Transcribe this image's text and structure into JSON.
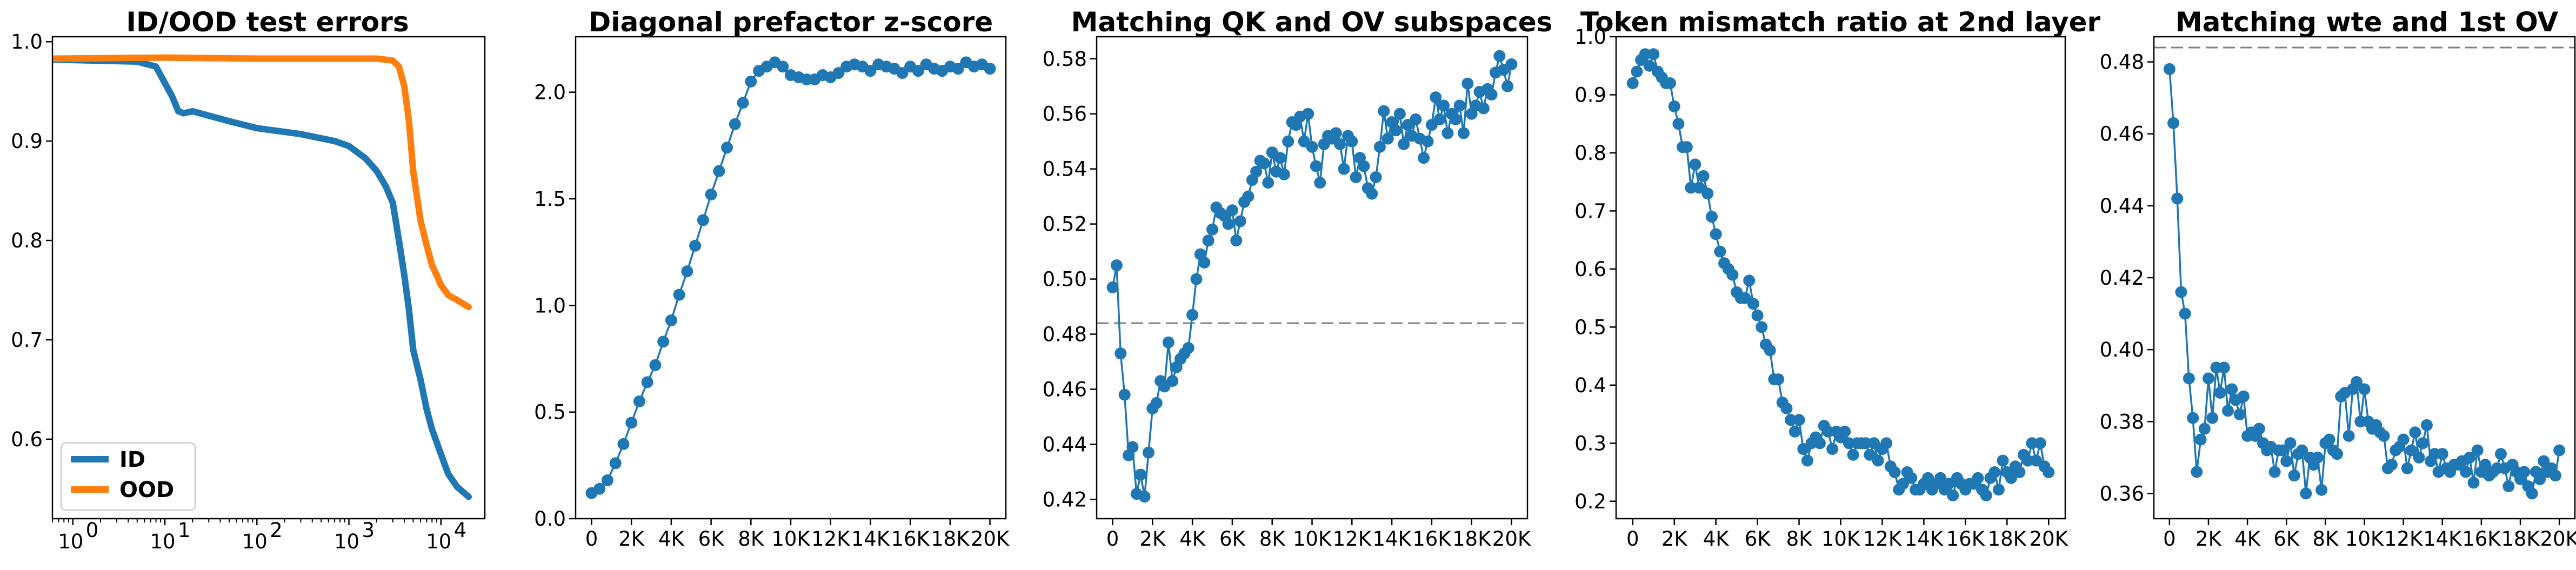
{
  "colors": {
    "blue": "#1f77b4",
    "orange": "#ff7f0e",
    "ref_line": "#808080"
  },
  "chart_data": [
    {
      "type": "line",
      "title": "ID/OOD test errors",
      "xscale": "log",
      "xlim": [
        0.6,
        30000
      ],
      "ylim": [
        0.52,
        1.005
      ],
      "xticks": [
        1,
        10,
        100,
        1000,
        10000
      ],
      "xtick_labels": [
        "10",
        "10",
        "10",
        "10",
        "10"
      ],
      "xtick_exponents": [
        "0",
        "1",
        "2",
        "3",
        "4"
      ],
      "yticks": [
        0.6,
        0.7,
        0.8,
        0.9,
        1.0
      ],
      "ytick_labels": [
        "0.6",
        "0.7",
        "0.8",
        "0.9",
        "1.0"
      ],
      "legend_position": "lower-left",
      "series": [
        {
          "name": "ID",
          "color": "#1f77b4",
          "x": [
            0.6,
            5,
            8,
            12,
            14,
            16,
            20,
            50,
            100,
            300,
            700,
            1000,
            1500,
            2000,
            2500,
            3000,
            3500,
            4000,
            4500,
            5000,
            6000,
            7000,
            8000,
            10000,
            12000,
            15000,
            20000
          ],
          "y": [
            0.982,
            0.98,
            0.975,
            0.945,
            0.93,
            0.928,
            0.93,
            0.92,
            0.913,
            0.907,
            0.9,
            0.895,
            0.883,
            0.87,
            0.855,
            0.838,
            0.8,
            0.765,
            0.73,
            0.69,
            0.66,
            0.63,
            0.61,
            0.585,
            0.565,
            0.552,
            0.542
          ]
        },
        {
          "name": "OOD",
          "color": "#ff7f0e",
          "x": [
            0.6,
            10,
            100,
            1000,
            2000,
            3000,
            3500,
            4000,
            4500,
            5000,
            6000,
            7000,
            8000,
            9000,
            10000,
            12000,
            15000,
            20000
          ],
          "y": [
            0.983,
            0.984,
            0.983,
            0.983,
            0.983,
            0.981,
            0.975,
            0.955,
            0.92,
            0.87,
            0.82,
            0.795,
            0.775,
            0.765,
            0.755,
            0.745,
            0.74,
            0.733
          ]
        }
      ]
    },
    {
      "type": "line",
      "title": "Diagonal prefactor z-score",
      "xlim": [
        -800,
        20800
      ],
      "ylim": [
        0.0,
        2.26
      ],
      "xticks": [
        0,
        2000,
        4000,
        6000,
        8000,
        10000,
        12000,
        14000,
        16000,
        18000,
        20000
      ],
      "xtick_labels": [
        "0",
        "2K",
        "4K",
        "6K",
        "8K",
        "10K",
        "12K",
        "14K",
        "16K",
        "18K",
        "20K"
      ],
      "yticks": [
        0.0,
        0.5,
        1.0,
        1.5,
        2.0
      ],
      "ytick_labels": [
        "0.0",
        "0.5",
        "1.0",
        "1.5",
        "2.0"
      ],
      "series": [
        {
          "color": "#1f77b4",
          "marker": "o",
          "x": [
            0,
            400,
            800,
            1200,
            1600,
            2000,
            2400,
            2800,
            3200,
            3600,
            4000,
            4400,
            4800,
            5200,
            5600,
            6000,
            6400,
            6800,
            7200,
            7600,
            8000,
            8400,
            8800,
            9200,
            9600,
            10000,
            10400,
            10800,
            11200,
            11600,
            12000,
            12400,
            12800,
            13200,
            13600,
            14000,
            14400,
            14800,
            15200,
            15600,
            16000,
            16400,
            16800,
            17200,
            17600,
            18000,
            18400,
            18800,
            19200,
            19600,
            20000
          ],
          "y": [
            0.12,
            0.14,
            0.18,
            0.26,
            0.35,
            0.45,
            0.55,
            0.64,
            0.72,
            0.83,
            0.93,
            1.05,
            1.16,
            1.28,
            1.4,
            1.52,
            1.63,
            1.74,
            1.85,
            1.95,
            2.05,
            2.1,
            2.12,
            2.14,
            2.12,
            2.08,
            2.07,
            2.06,
            2.06,
            2.08,
            2.07,
            2.09,
            2.12,
            2.13,
            2.12,
            2.1,
            2.13,
            2.12,
            2.11,
            2.09,
            2.12,
            2.1,
            2.13,
            2.11,
            2.1,
            2.12,
            2.11,
            2.14,
            2.12,
            2.13,
            2.11
          ]
        }
      ]
    },
    {
      "type": "line",
      "title": "Matching QK and OV subspaces",
      "xlim": [
        -800,
        20800
      ],
      "ylim": [
        0.413,
        0.588
      ],
      "hline": 0.484,
      "xticks": [
        0,
        2000,
        4000,
        6000,
        8000,
        10000,
        12000,
        14000,
        16000,
        18000,
        20000
      ],
      "xtick_labels": [
        "0",
        "2K",
        "4K",
        "6K",
        "8K",
        "10K",
        "12K",
        "14K",
        "16K",
        "18K",
        "20K"
      ],
      "yticks": [
        0.42,
        0.44,
        0.46,
        0.48,
        0.5,
        0.52,
        0.54,
        0.56,
        0.58
      ],
      "ytick_labels": [
        "0.42",
        "0.44",
        "0.46",
        "0.48",
        "0.50",
        "0.52",
        "0.54",
        "0.56",
        "0.58"
      ],
      "series": [
        {
          "color": "#1f77b4",
          "marker": "o",
          "x": [
            0,
            200,
            400,
            600,
            800,
            1000,
            1200,
            1400,
            1600,
            1800,
            2000,
            2200,
            2400,
            2600,
            2800,
            3000,
            3200,
            3400,
            3600,
            3800,
            4000,
            4200,
            4400,
            4600,
            4800,
            5000,
            5200,
            5400,
            5600,
            5800,
            6000,
            6200,
            6400,
            6600,
            6800,
            7000,
            7200,
            7400,
            7600,
            7800,
            8000,
            8200,
            8400,
            8600,
            8800,
            9000,
            9200,
            9400,
            9600,
            9800,
            10000,
            10200,
            10400,
            10600,
            10800,
            11000,
            11200,
            11400,
            11600,
            11800,
            12000,
            12200,
            12400,
            12600,
            12800,
            13000,
            13200,
            13400,
            13600,
            13800,
            14000,
            14200,
            14400,
            14600,
            14800,
            15000,
            15200,
            15400,
            15600,
            15800,
            16000,
            16200,
            16400,
            16600,
            16800,
            17000,
            17200,
            17400,
            17600,
            17800,
            18000,
            18200,
            18400,
            18600,
            18800,
            19000,
            19200,
            19400,
            19600,
            19800,
            20000
          ],
          "y": [
            0.497,
            0.505,
            0.473,
            0.458,
            0.436,
            0.439,
            0.422,
            0.429,
            0.421,
            0.437,
            0.453,
            0.455,
            0.463,
            0.461,
            0.477,
            0.463,
            0.468,
            0.471,
            0.473,
            0.475,
            0.487,
            0.5,
            0.509,
            0.506,
            0.514,
            0.518,
            0.526,
            0.524,
            0.523,
            0.52,
            0.525,
            0.514,
            0.521,
            0.528,
            0.53,
            0.536,
            0.539,
            0.543,
            0.542,
            0.535,
            0.546,
            0.539,
            0.544,
            0.538,
            0.55,
            0.557,
            0.556,
            0.559,
            0.55,
            0.56,
            0.548,
            0.541,
            0.535,
            0.549,
            0.552,
            0.551,
            0.553,
            0.549,
            0.54,
            0.552,
            0.55,
            0.537,
            0.544,
            0.541,
            0.533,
            0.531,
            0.537,
            0.548,
            0.561,
            0.551,
            0.557,
            0.554,
            0.56,
            0.549,
            0.556,
            0.552,
            0.558,
            0.551,
            0.544,
            0.55,
            0.556,
            0.566,
            0.558,
            0.563,
            0.553,
            0.56,
            0.558,
            0.563,
            0.553,
            0.571,
            0.56,
            0.563,
            0.568,
            0.562,
            0.569,
            0.567,
            0.575,
            0.581,
            0.576,
            0.57,
            0.578
          ]
        }
      ]
    },
    {
      "type": "line",
      "title": "Token mismatch ratio at 2nd layer",
      "xlim": [
        -800,
        20800
      ],
      "ylim": [
        0.17,
        1.0
      ],
      "xticks": [
        0,
        2000,
        4000,
        6000,
        8000,
        10000,
        12000,
        14000,
        16000,
        18000,
        20000
      ],
      "xtick_labels": [
        "0",
        "2K",
        "4K",
        "6K",
        "8K",
        "10K",
        "12K",
        "14K",
        "16K",
        "18K",
        "20K"
      ],
      "yticks": [
        0.2,
        0.3,
        0.4,
        0.5,
        0.6,
        0.7,
        0.8,
        0.9,
        1.0
      ],
      "ytick_labels": [
        "0.2",
        "0.3",
        "0.4",
        "0.5",
        "0.6",
        "0.7",
        "0.8",
        "0.9",
        "1.0"
      ],
      "series": [
        {
          "color": "#1f77b4",
          "marker": "o",
          "x": [
            0,
            200,
            400,
            600,
            800,
            1000,
            1200,
            1400,
            1600,
            1800,
            2000,
            2200,
            2400,
            2600,
            2800,
            3000,
            3200,
            3400,
            3600,
            3800,
            4000,
            4200,
            4400,
            4600,
            4800,
            5000,
            5200,
            5400,
            5600,
            5800,
            6000,
            6200,
            6400,
            6600,
            6800,
            7000,
            7200,
            7400,
            7600,
            7800,
            8000,
            8200,
            8400,
            8600,
            8800,
            9000,
            9200,
            9400,
            9600,
            9800,
            10000,
            10200,
            10400,
            10600,
            10800,
            11000,
            11200,
            11400,
            11600,
            11800,
            12000,
            12200,
            12400,
            12600,
            12800,
            13000,
            13200,
            13400,
            13600,
            13800,
            14000,
            14200,
            14400,
            14600,
            14800,
            15000,
            15200,
            15400,
            15600,
            15800,
            16000,
            16200,
            16400,
            16600,
            16800,
            17000,
            17200,
            17400,
            17600,
            17800,
            18000,
            18200,
            18400,
            18600,
            18800,
            19000,
            19200,
            19400,
            19600,
            19800,
            20000
          ],
          "y": [
            0.92,
            0.94,
            0.96,
            0.97,
            0.95,
            0.97,
            0.94,
            0.93,
            0.92,
            0.92,
            0.88,
            0.85,
            0.81,
            0.81,
            0.74,
            0.78,
            0.74,
            0.76,
            0.73,
            0.69,
            0.66,
            0.63,
            0.61,
            0.6,
            0.59,
            0.56,
            0.55,
            0.55,
            0.58,
            0.54,
            0.52,
            0.5,
            0.47,
            0.46,
            0.41,
            0.41,
            0.37,
            0.36,
            0.34,
            0.32,
            0.34,
            0.29,
            0.27,
            0.3,
            0.31,
            0.3,
            0.33,
            0.32,
            0.29,
            0.32,
            0.31,
            0.32,
            0.3,
            0.28,
            0.3,
            0.3,
            0.3,
            0.28,
            0.3,
            0.27,
            0.29,
            0.3,
            0.26,
            0.25,
            0.22,
            0.23,
            0.25,
            0.24,
            0.22,
            0.22,
            0.23,
            0.24,
            0.22,
            0.23,
            0.24,
            0.22,
            0.23,
            0.21,
            0.24,
            0.23,
            0.22,
            0.23,
            0.23,
            0.24,
            0.22,
            0.21,
            0.24,
            0.25,
            0.22,
            0.27,
            0.25,
            0.24,
            0.26,
            0.25,
            0.28,
            0.27,
            0.3,
            0.27,
            0.3,
            0.26,
            0.25
          ]
        }
      ]
    },
    {
      "type": "line",
      "title": "Matching wte and 1st OV",
      "xlim": [
        -800,
        20800
      ],
      "ylim": [
        0.353,
        0.487
      ],
      "hline": 0.484,
      "xticks": [
        0,
        2000,
        4000,
        6000,
        8000,
        10000,
        12000,
        14000,
        16000,
        18000,
        20000
      ],
      "xtick_labels": [
        "0",
        "2K",
        "4K",
        "6K",
        "8K",
        "10K",
        "12K",
        "14K",
        "16K",
        "18K",
        "20K"
      ],
      "yticks": [
        0.36,
        0.38,
        0.4,
        0.42,
        0.44,
        0.46,
        0.48
      ],
      "ytick_labels": [
        "0.36",
        "0.38",
        "0.40",
        "0.42",
        "0.44",
        "0.46",
        "0.48"
      ],
      "series": [
        {
          "color": "#1f77b4",
          "marker": "o",
          "x": [
            0,
            200,
            400,
            600,
            800,
            1000,
            1200,
            1400,
            1600,
            1800,
            2000,
            2200,
            2400,
            2600,
            2800,
            3000,
            3200,
            3400,
            3600,
            3800,
            4000,
            4200,
            4400,
            4600,
            4800,
            5000,
            5200,
            5400,
            5600,
            5800,
            6000,
            6200,
            6400,
            6600,
            6800,
            7000,
            7200,
            7400,
            7600,
            7800,
            8000,
            8200,
            8400,
            8600,
            8800,
            9000,
            9200,
            9400,
            9600,
            9800,
            10000,
            10200,
            10400,
            10600,
            10800,
            11000,
            11200,
            11400,
            11600,
            11800,
            12000,
            12200,
            12400,
            12600,
            12800,
            13000,
            13200,
            13400,
            13600,
            13800,
            14000,
            14200,
            14400,
            14600,
            14800,
            15000,
            15200,
            15400,
            15600,
            15800,
            16000,
            16200,
            16400,
            16600,
            16800,
            17000,
            17200,
            17400,
            17600,
            17800,
            18000,
            18200,
            18400,
            18600,
            18800,
            19000,
            19200,
            19400,
            19600,
            19800,
            20000
          ],
          "y": [
            0.478,
            0.463,
            0.442,
            0.416,
            0.41,
            0.392,
            0.381,
            0.366,
            0.375,
            0.378,
            0.392,
            0.381,
            0.395,
            0.388,
            0.395,
            0.383,
            0.389,
            0.386,
            0.382,
            0.387,
            0.376,
            0.377,
            0.376,
            0.378,
            0.374,
            0.372,
            0.373,
            0.366,
            0.372,
            0.372,
            0.369,
            0.374,
            0.365,
            0.371,
            0.372,
            0.36,
            0.37,
            0.368,
            0.37,
            0.361,
            0.374,
            0.375,
            0.372,
            0.371,
            0.387,
            0.388,
            0.376,
            0.389,
            0.391,
            0.38,
            0.389,
            0.38,
            0.378,
            0.379,
            0.377,
            0.376,
            0.367,
            0.368,
            0.372,
            0.373,
            0.375,
            0.367,
            0.372,
            0.377,
            0.37,
            0.374,
            0.379,
            0.369,
            0.371,
            0.366,
            0.371,
            0.367,
            0.366,
            0.368,
            0.368,
            0.369,
            0.366,
            0.37,
            0.363,
            0.372,
            0.366,
            0.368,
            0.365,
            0.366,
            0.367,
            0.371,
            0.367,
            0.362,
            0.368,
            0.366,
            0.364,
            0.366,
            0.362,
            0.36,
            0.366,
            0.364,
            0.369,
            0.366,
            0.367,
            0.365,
            0.372
          ]
        }
      ]
    }
  ]
}
